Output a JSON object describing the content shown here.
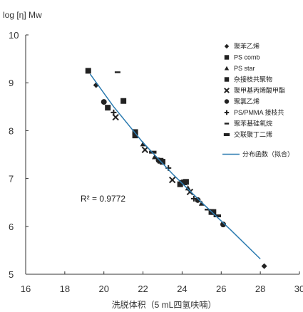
{
  "chart_data": {
    "type": "scatter",
    "title": "",
    "ylabel": "log [η] Mw",
    "xlabel": "洗脱体积（5 mL四氢呋喃）",
    "xlim": [
      16,
      30
    ],
    "ylim": [
      5,
      10
    ],
    "xticks": [
      16,
      18,
      20,
      22,
      24,
      26,
      28,
      30
    ],
    "yticks": [
      5,
      6,
      7,
      8,
      9,
      10
    ],
    "grid": false,
    "legend_position": "right",
    "annotation": "R² = 0.9772",
    "series": [
      {
        "name": "聚苯乙烯",
        "marker": "diamond",
        "color": "#222222",
        "points": [
          [
            19.6,
            8.95
          ],
          [
            28.2,
            5.17
          ]
        ]
      },
      {
        "name": "PS comb",
        "marker": "square",
        "color": "#222222",
        "points": [
          [
            19.2,
            9.25
          ],
          [
            21.0,
            8.62
          ],
          [
            21.6,
            7.9
          ],
          [
            23.0,
            7.35
          ],
          [
            24.1,
            6.92
          ],
          [
            25.6,
            6.3
          ]
        ]
      },
      {
        "name": "PS star",
        "marker": "triangle",
        "color": "#222222",
        "points": [
          [
            22.0,
            7.72
          ],
          [
            22.6,
            7.45
          ],
          [
            24.3,
            6.8
          ],
          [
            25.0,
            6.48
          ]
        ]
      },
      {
        "name": "杂接枝共聚物",
        "marker": "square",
        "color": "#222222",
        "points": [
          [
            20.2,
            8.48
          ],
          [
            21.6,
            7.97
          ],
          [
            22.9,
            7.37
          ],
          [
            23.9,
            6.88
          ],
          [
            24.2,
            6.93
          ],
          [
            25.5,
            6.3
          ]
        ]
      },
      {
        "name": "聚甲基丙烯酸甲酯",
        "marker": "x",
        "color": "#222222",
        "points": [
          [
            20.6,
            8.28
          ],
          [
            22.1,
            7.6
          ],
          [
            23.5,
            6.97
          ],
          [
            24.4,
            6.72
          ]
        ]
      },
      {
        "name": "聚氯乙烯",
        "marker": "circle",
        "color": "#222222",
        "points": [
          [
            20.0,
            8.6
          ],
          [
            22.8,
            7.38
          ],
          [
            24.8,
            6.55
          ],
          [
            26.1,
            6.04
          ]
        ]
      },
      {
        "name": "PS/PMMA 接枝共",
        "marker": "plus",
        "color": "#222222",
        "points": [
          [
            20.5,
            8.38
          ],
          [
            23.3,
            7.22
          ],
          [
            24.6,
            6.58
          ]
        ]
      },
      {
        "name": "聚苯基硅氧烷",
        "marker": "dash",
        "color": "#222222",
        "points": [
          [
            20.7,
            9.22
          ],
          [
            24.0,
            6.95
          ],
          [
            25.3,
            6.35
          ]
        ]
      },
      {
        "name": "交联聚丁二烯",
        "marker": "thickdash",
        "color": "#222222",
        "points": [
          [
            22.5,
            7.55
          ],
          [
            25.8,
            6.22
          ]
        ]
      }
    ],
    "fit_line": {
      "name": "分布函数（拟合）",
      "color": "#2a7ab0",
      "points": [
        [
          19.3,
          9.18
        ],
        [
          20.5,
          8.5
        ],
        [
          22.0,
          7.75
        ],
        [
          23.5,
          7.1
        ],
        [
          25.0,
          6.5
        ],
        [
          26.5,
          5.92
        ],
        [
          28.0,
          5.32
        ]
      ]
    }
  }
}
